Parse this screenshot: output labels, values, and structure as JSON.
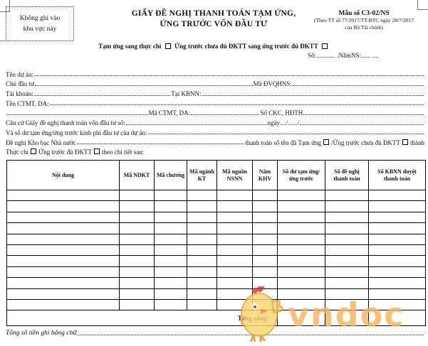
{
  "no_write_box": {
    "line1": "Không ghi vào",
    "line2": "khu vực này"
  },
  "header": {
    "title_line1": "GIẤY ĐỀ NGHỊ THANH TOÁN TẠM ỨNG,",
    "title_line2": "ỨNG TRƯỚC VỐN ĐẦU TƯ",
    "form_no": "Mẫu số C3-02/NS",
    "form_ref_line1": "(Theo TT số 77/2017/TT-BTC ngày 28/7/2017",
    "form_ref_line2": "của Bộ Tài chính)",
    "checkbox_option1": "Tạm ứng sang thực chi",
    "checkbox_option2": "Ứng trước chưa đủ ĐKTT sang ứng trước đủ ĐKTT",
    "so_line": "Số:............ .NămNS:...... ...."
  },
  "fields": {
    "line1_label": "Tên dự án:",
    "line2_label1": "Chủ đầu tư",
    "line2_label2": "Mã ĐVQHNS:",
    "line3_label1": "Tài khoản:",
    "line3_label2": "Tại KBNN:",
    "line4_label": "Tên CTMT, DA:",
    "line5_label1": "Mã CTMT, DA:",
    "line5_label2": "Số CKC, HĐTH",
    "line6_label": "Căn cứ Giấy đề nghị thanh toán vốn đầu tư số:",
    "line6_date": "ngày..../....../",
    "line7_label": "Và số dư tạm ứng/ứng trước kinh phí đầu tư của dự án:",
    "line8_part1": "Đề nghị Kho bạc Nhà nước",
    "line8_part2": "thanh toán số tền đã Tạm ứng",
    "line8_part3": "/Ứng trước chưa đủ ĐKTT",
    "line8_part4": "thành",
    "line9_part1": "Thực chi",
    "line9_part2": "Ứng trước đủ ĐKTT",
    "line9_part3": "theo chi tiết sau:"
  },
  "table": {
    "headers": [
      "Nội dung",
      "Mã NDKT",
      "Mã chương",
      "Mã ngành KT",
      "Mã nguồn NSNN",
      "Năm KHV",
      "Số dư tạm ứng/ứng trước",
      "Số đề nghị thanh toán",
      "Số KBNN duyệt thanh toán"
    ],
    "body_row_count": 11,
    "total_label": "Tổng cộng:"
  },
  "footer": {
    "total_in_words_label": "Tổng số tiền ghi bằng chữ"
  },
  "watermark": {
    "text": "vndoc",
    "color": "#f6b45c"
  }
}
